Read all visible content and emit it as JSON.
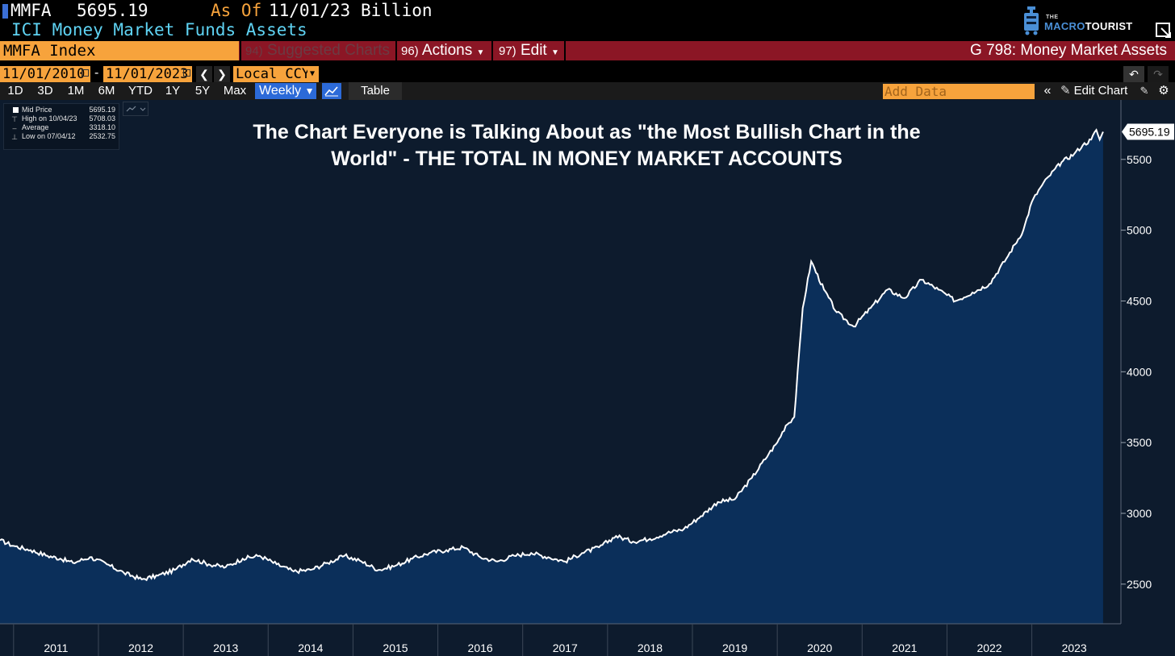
{
  "header": {
    "ticker": "MMFA",
    "value": "5695.19",
    "asof_label": "As Of",
    "asof_date": "11/01/23",
    "units": "Billion",
    "description": "ICI Money Market Funds Assets",
    "logo_small": "THE",
    "logo_word1": "MACRO",
    "logo_word2": "TOURIST"
  },
  "menubar": {
    "index_field": "MMFA Index",
    "suggested_num": "94)",
    "suggested_label": "Suggested Charts",
    "actions_num": "96)",
    "actions_label": "Actions",
    "edit_num": "97)",
    "edit_label": "Edit",
    "title": "G 798: Money Market Assets"
  },
  "datebar": {
    "from": "11/01/2010",
    "dash": "-",
    "to": "11/01/2023",
    "currency": "Local CCY"
  },
  "toolbar": {
    "ranges": [
      "1D",
      "3D",
      "1M",
      "6M",
      "YTD",
      "1Y",
      "5Y",
      "Max"
    ],
    "frequency": "Weekly",
    "table_label": "Table",
    "add_data_placeholder": "Add Data",
    "edit_chart_label": "Edit Chart"
  },
  "legend": {
    "rows": [
      {
        "label": "Mid Price",
        "value": "5695.19"
      },
      {
        "label": "High on 10/04/23",
        "value": "5708.03"
      },
      {
        "label": "Average",
        "value": "3318.10"
      },
      {
        "label": "Low on 07/04/12",
        "value": "2532.75"
      }
    ]
  },
  "colors": {
    "line": "#ffffff",
    "area": "#0b2f5a",
    "background": "#0d1b2d",
    "accent_orange": "#f7a33c",
    "menu_red": "#8b1625"
  },
  "chart_data": {
    "type": "area",
    "title": "The Chart Everyone is Talking About as \"the Most Bullish Chart in the World\" - THE TOTAL IN MONEY MARKET ACCOUNTS",
    "series": [
      {
        "name": "Mid Price",
        "last_value_label": "5695.19"
      }
    ],
    "x": [
      2010.84,
      2011.0,
      2011.2,
      2011.4,
      2011.55,
      2011.7,
      2011.9,
      2012.1,
      2012.3,
      2012.51,
      2012.7,
      2012.9,
      2013.1,
      2013.3,
      2013.5,
      2013.7,
      2013.9,
      2014.1,
      2014.3,
      2014.5,
      2014.7,
      2014.9,
      2015.1,
      2015.3,
      2015.5,
      2015.7,
      2015.9,
      2016.1,
      2016.3,
      2016.5,
      2016.7,
      2016.9,
      2017.1,
      2017.3,
      2017.5,
      2017.7,
      2017.9,
      2018.1,
      2018.3,
      2018.5,
      2018.7,
      2018.9,
      2019.1,
      2019.3,
      2019.5,
      2019.7,
      2019.9,
      2020.0,
      2020.1,
      2020.2,
      2020.3,
      2020.4,
      2020.55,
      2020.7,
      2020.9,
      2021.1,
      2021.3,
      2021.5,
      2021.7,
      2021.9,
      2022.1,
      2022.3,
      2022.5,
      2022.7,
      2022.9,
      2023.0,
      2023.1,
      2023.2,
      2023.35,
      2023.5,
      2023.6,
      2023.7,
      2023.76,
      2023.8,
      2023.84
    ],
    "y": [
      2810,
      2770,
      2740,
      2700,
      2680,
      2650,
      2690,
      2640,
      2580,
      2533,
      2560,
      2600,
      2680,
      2640,
      2620,
      2680,
      2700,
      2640,
      2590,
      2600,
      2650,
      2700,
      2660,
      2600,
      2630,
      2680,
      2720,
      2740,
      2760,
      2690,
      2660,
      2700,
      2720,
      2690,
      2660,
      2720,
      2760,
      2840,
      2800,
      2820,
      2860,
      2890,
      2980,
      3080,
      3100,
      3250,
      3420,
      3500,
      3620,
      3680,
      4450,
      4780,
      4580,
      4420,
      4320,
      4450,
      4580,
      4520,
      4650,
      4580,
      4500,
      4560,
      4620,
      4800,
      5000,
      5200,
      5300,
      5380,
      5480,
      5540,
      5600,
      5640,
      5708,
      5640,
      5695
    ],
    "xlabel": "",
    "ylabel": "",
    "x_ticks": [
      "2011",
      "2012",
      "2013",
      "2014",
      "2015",
      "2016",
      "2017",
      "2018",
      "2019",
      "2020",
      "2021",
      "2022",
      "2023"
    ],
    "y_ticks": [
      "2500",
      "3000",
      "3500",
      "4000",
      "4500",
      "5000",
      "5500"
    ],
    "xlim": [
      2010.84,
      2024.05
    ],
    "ylim": [
      2220,
      5920
    ],
    "grid": false,
    "legend_placement": "top-left"
  }
}
